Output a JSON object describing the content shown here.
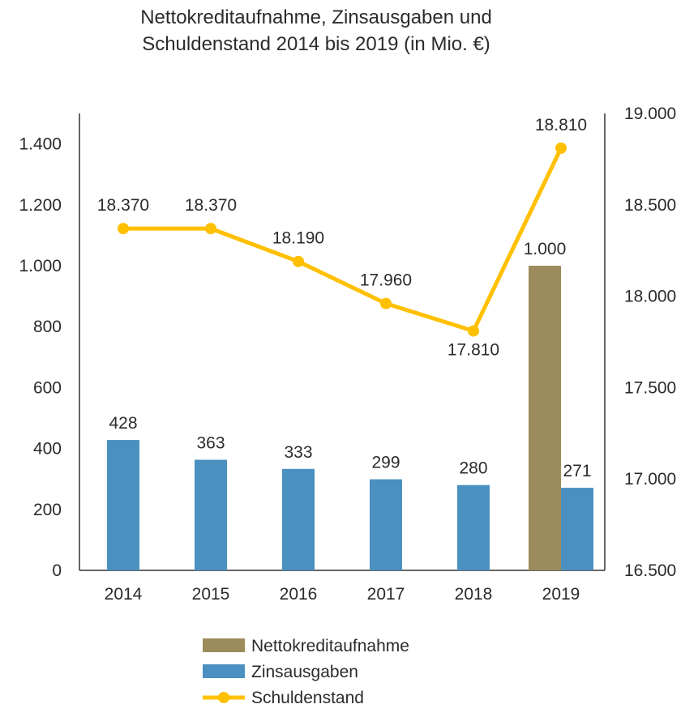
{
  "chart_data": {
    "type": "bar",
    "title_lines": [
      "Nettokreditaufnahme, Zinsausgaben und",
      "Schuldenstand 2014 bis 2019 (in Mio. €)"
    ],
    "categories": [
      "2014",
      "2015",
      "2016",
      "2017",
      "2018",
      "2019"
    ],
    "series": [
      {
        "name": "Nettokreditaufnahme",
        "type": "bar",
        "axis": "left",
        "values": [
          null,
          null,
          null,
          null,
          null,
          1000
        ],
        "labels": [
          "",
          "",
          "",
          "",
          "",
          "1.000"
        ],
        "color": "#9c8c5c"
      },
      {
        "name": "Zinsausgaben",
        "type": "bar",
        "axis": "left",
        "values": [
          428,
          363,
          333,
          299,
          280,
          271
        ],
        "labels": [
          "428",
          "363",
          "333",
          "299",
          "280",
          "271"
        ],
        "color": "#4a90c0"
      },
      {
        "name": "Schuldenstand",
        "type": "line",
        "axis": "right",
        "values": [
          18370,
          18370,
          18190,
          17960,
          17810,
          18810
        ],
        "labels": [
          "18.370",
          "18.370",
          "18.190",
          "17.960",
          "17.810",
          "18.810"
        ],
        "color": "#ffc000"
      }
    ],
    "y_left": {
      "range": [
        0,
        1500
      ],
      "ticks": [
        0,
        200,
        400,
        600,
        800,
        1000,
        1200,
        1400
      ],
      "tick_labels": [
        "0",
        "200",
        "400",
        "600",
        "800",
        "1.000",
        "1.200",
        "1.400"
      ]
    },
    "y_right": {
      "range": [
        16500,
        19000
      ],
      "ticks": [
        16500,
        17000,
        17500,
        18000,
        18500,
        19000
      ],
      "tick_labels": [
        "16.500",
        "17.000",
        "17.500",
        "18.000",
        "18.500",
        "19.000"
      ]
    },
    "grid": false,
    "legend": "bottom"
  }
}
